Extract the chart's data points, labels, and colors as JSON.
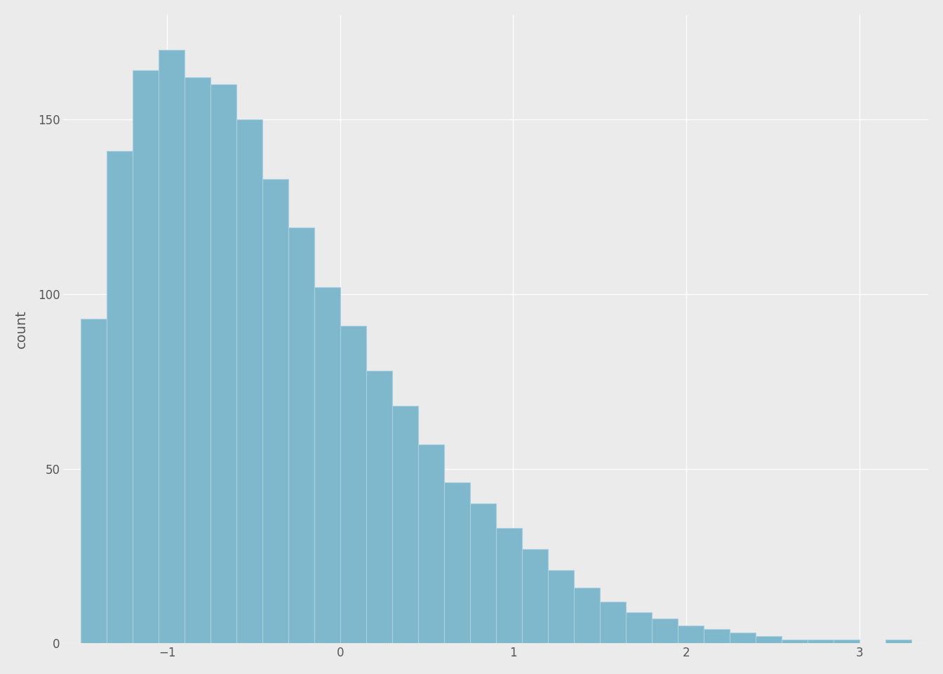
{
  "ylabel": "count",
  "bar_color": "#7fb8cc",
  "bar_edge_color": "#aad0e0",
  "background_color": "#ebebeb",
  "grid_color": "#ffffff",
  "text_color": "#555555",
  "bin_edges": [
    -1.5,
    -1.35,
    -1.2,
    -1.05,
    -0.9,
    -0.75,
    -0.6,
    -0.45,
    -0.3,
    -0.15,
    0.0,
    0.15,
    0.3,
    0.45,
    0.6,
    0.75,
    0.9,
    1.05,
    1.2,
    1.35,
    1.5,
    1.65,
    1.8,
    1.95,
    2.1,
    2.25,
    2.4,
    2.55,
    2.7,
    2.85,
    3.0,
    3.15,
    3.3
  ],
  "bin_heights": [
    93,
    141,
    164,
    170,
    162,
    160,
    150,
    133,
    119,
    102,
    91,
    78,
    68,
    57,
    46,
    40,
    33,
    27,
    21,
    16,
    12,
    9,
    7,
    5,
    4,
    3,
    2,
    1,
    1,
    1,
    0,
    1
  ],
  "ylim": [
    0,
    180
  ],
  "yticks": [
    0,
    50,
    100,
    150
  ],
  "xticks": [
    -1,
    0,
    1,
    2,
    3
  ],
  "ylabel_fontsize": 14,
  "tick_fontsize": 12,
  "figsize": [
    13.44,
    9.6
  ],
  "dpi": 100
}
